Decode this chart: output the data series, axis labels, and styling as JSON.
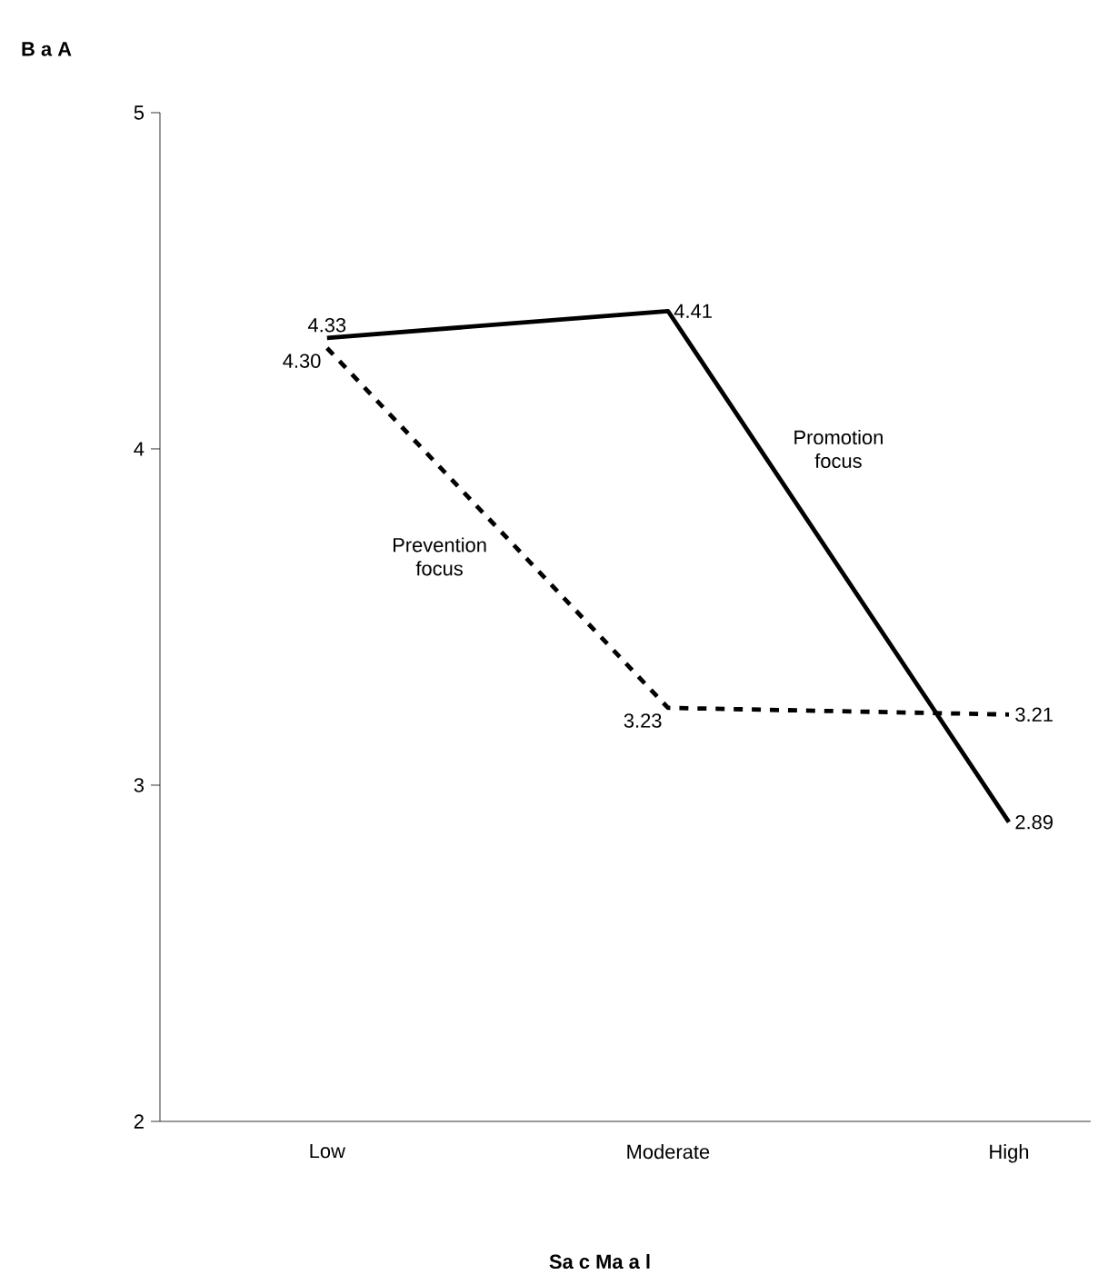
{
  "chart_data": {
    "type": "line",
    "xlabel": "Sa c Ma a l",
    "ylabel": "B a A",
    "categories": [
      "Low",
      "Moderate",
      "High"
    ],
    "series": [
      {
        "name": "Promotion focus",
        "color": "#000000",
        "line_style": "solid",
        "values": [
          4.33,
          4.41,
          2.89
        ],
        "value_labels": [
          "4.33",
          "4.41",
          "2.89"
        ]
      },
      {
        "name": "Prevention focus",
        "color": "#000000",
        "line_style": "dashed",
        "values": [
          4.3,
          3.23,
          3.21
        ],
        "value_labels": [
          "4.30",
          "3.23",
          "3.21"
        ]
      }
    ],
    "ylim": [
      2,
      5
    ],
    "yticks": [
      2,
      3,
      4,
      5
    ],
    "marker": "none",
    "legend": false,
    "grid": false
  }
}
